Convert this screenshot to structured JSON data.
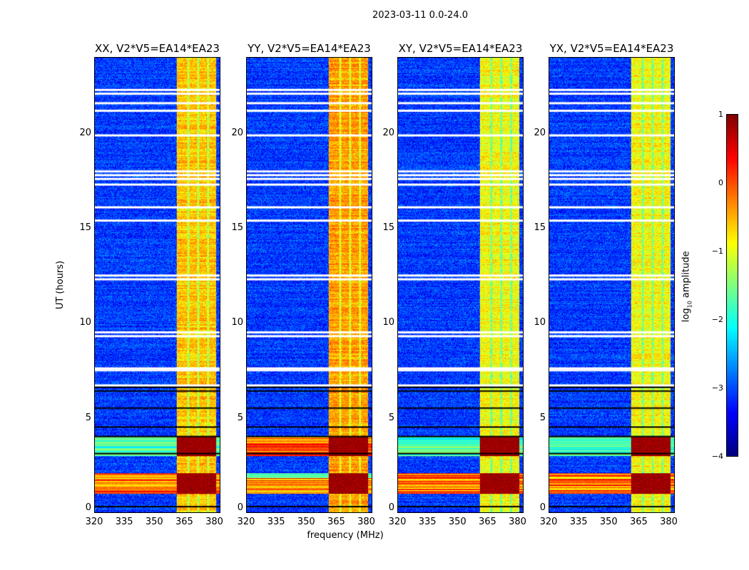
{
  "chart_data": {
    "type": "heatmap",
    "title": "2023-03-11 0.0-24.0",
    "xlabel": "frequency (MHz)",
    "ylabel": "UT (hours)",
    "xlim": [
      320,
      383
    ],
    "ylim": [
      0,
      24
    ],
    "xticks": [
      "320",
      "335",
      "350",
      "365",
      "380"
    ],
    "yticks": [
      "0",
      "5",
      "10",
      "15",
      "20"
    ],
    "panels": [
      {
        "title": "XX, V2*V5=EA14*EA23",
        "band_level": -0.6
      },
      {
        "title": "YY, V2*V5=EA14*EA23",
        "band_level": -0.4
      },
      {
        "title": "XY, V2*V5=EA14*EA23",
        "band_level": -0.9
      },
      {
        "title": "YX, V2*V5=EA14*EA23",
        "band_level": -0.9
      }
    ],
    "bright_band_mhz": [
      361,
      381
    ],
    "band_gaps_mhz": [
      367,
      372,
      377
    ],
    "background_level": -3.1,
    "strong_rfi_hours": [
      [
        1.0,
        2.1
      ],
      [
        3.0,
        4.0
      ]
    ],
    "flagged_hours": [
      22.3,
      22.1,
      21.6,
      21.2,
      19.9,
      18.0,
      17.8,
      17.6,
      17.3,
      16.1,
      15.4,
      12.5,
      12.3,
      9.5,
      9.3,
      7.6,
      7.5,
      6.7
    ],
    "dark_lines_hours": [
      6.6,
      6.4,
      5.5,
      4.5,
      4.0,
      3.1,
      0.3
    ],
    "colorbar": {
      "label": "log10 amplitude",
      "range": [
        -4,
        1
      ],
      "ticks": [
        "1",
        "0",
        "−1",
        "−2",
        "−3",
        "−4"
      ],
      "colormap": "jet"
    }
  }
}
